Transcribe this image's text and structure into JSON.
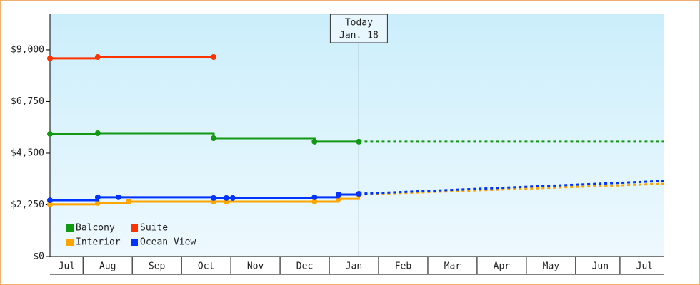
{
  "chart_data": {
    "type": "step-line",
    "xlim": [
      -0.67,
      11.8
    ],
    "xticks": [
      {
        "value": -0.33,
        "label": "Jul"
      },
      {
        "value": 0.5,
        "label": "Aug"
      },
      {
        "value": 1.5,
        "label": "Sep"
      },
      {
        "value": 2.5,
        "label": "Oct"
      },
      {
        "value": 3.5,
        "label": "Nov"
      },
      {
        "value": 4.5,
        "label": "Dec"
      },
      {
        "value": 5.5,
        "label": "Jan"
      },
      {
        "value": 6.5,
        "label": "Feb"
      },
      {
        "value": 7.5,
        "label": "Mar"
      },
      {
        "value": 8.5,
        "label": "Apr"
      },
      {
        "value": 9.5,
        "label": "May"
      },
      {
        "value": 10.5,
        "label": "Jun"
      },
      {
        "value": 11.4,
        "label": "Jul"
      }
    ],
    "ylim": [
      0,
      10550
    ],
    "yticks": [
      {
        "value": 0,
        "label": "$0"
      },
      {
        "value": 2250,
        "label": "$2,250"
      },
      {
        "value": 4500,
        "label": "$4,500"
      },
      {
        "value": 6750,
        "label": "$6,750"
      },
      {
        "value": 9000,
        "label": "$9,000"
      }
    ],
    "annotation": {
      "x": 5.6,
      "label": "Today",
      "date": "Jan. 18"
    },
    "legend_position": "lower left",
    "series": [
      {
        "name": "Balcony",
        "color": "#119911",
        "x": [
          -0.67,
          0.3,
          2.65,
          4.7,
          5.6
        ],
        "values": [
          5340,
          5370,
          5150,
          5000,
          5000
        ],
        "forecast": {
          "x": [
            5.6,
            11.8
          ],
          "values": [
            5000,
            5000
          ]
        }
      },
      {
        "name": "Suite",
        "color": "#ff3300",
        "x": [
          -0.67,
          0.3,
          2.65
        ],
        "values": [
          8630,
          8690,
          8690
        ]
      },
      {
        "name": "Interior",
        "color": "#ffa500",
        "x": [
          -0.67,
          0.3,
          0.93,
          2.65,
          2.91,
          4.7,
          5.19,
          5.6
        ],
        "values": [
          2270,
          2330,
          2390,
          2390,
          2390,
          2390,
          2510,
          2700
        ],
        "forecast": {
          "x": [
            5.6,
            11.8
          ],
          "values": [
            2700,
            3170
          ]
        }
      },
      {
        "name": "Ocean View",
        "color": "#0033ff",
        "x": [
          -0.67,
          0.3,
          0.72,
          2.65,
          2.91,
          3.04,
          4.7,
          5.19,
          5.6
        ],
        "values": [
          2450,
          2580,
          2580,
          2550,
          2550,
          2550,
          2580,
          2700,
          2730
        ],
        "forecast": {
          "x": [
            5.6,
            11.8
          ],
          "values": [
            2730,
            3290
          ]
        }
      }
    ]
  }
}
